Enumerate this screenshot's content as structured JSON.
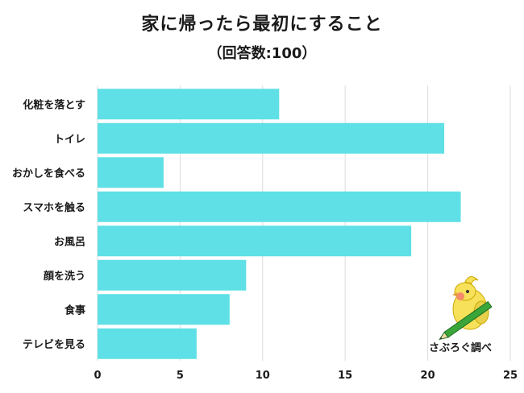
{
  "chart_data": {
    "type": "bar",
    "orientation": "horizontal",
    "title": "家に帰ったら最初にすること",
    "subtitle": "（回答数:100）",
    "categories": [
      "化粧を落とす",
      "トイレ",
      "おかしを食べる",
      "スマホを触る",
      "お風呂",
      "顔を洗う",
      "食事",
      "テレビを見る"
    ],
    "values": [
      11,
      21,
      4,
      22,
      19,
      9,
      8,
      6
    ],
    "xlim": [
      0,
      25
    ],
    "xticks": [
      0,
      5,
      10,
      15,
      20,
      25
    ],
    "grid": true,
    "bar_color": "#5ee0e6"
  },
  "logo": {
    "text": "さぶろぐ調べ",
    "body_color": "#f7e15a",
    "pencil_color": "#3aa63a"
  }
}
